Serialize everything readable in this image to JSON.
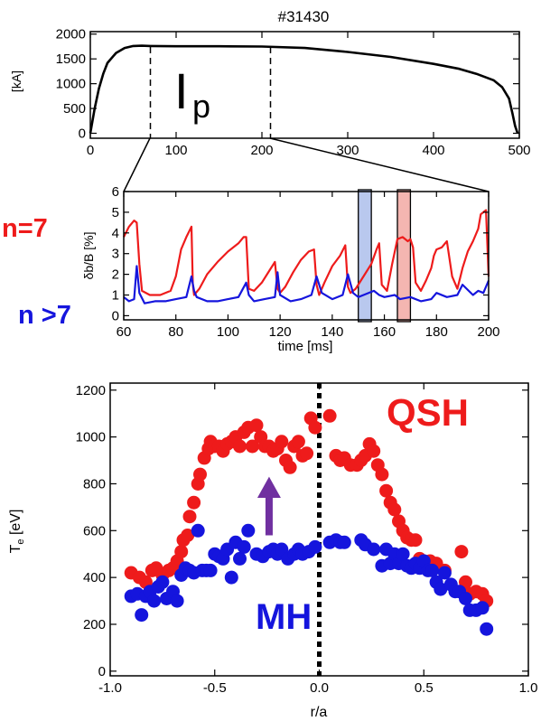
{
  "figure": {
    "shot_title": "#31430",
    "ip_label_main": "I",
    "ip_label_sub": "p",
    "n7_label": "n=7",
    "ngt7_label": "n  >7",
    "qsh_label": "QSH",
    "mh_label": "MH"
  },
  "colors": {
    "red": "#ee1b1b",
    "blue": "#1515dd",
    "arrow": "#7030a0",
    "box_blue": "#b9c8ee",
    "box_red": "#f4b6b1"
  },
  "chart_data": [
    {
      "type": "line",
      "title": "#31430",
      "xlabel": "",
      "ylabel": "[kA]",
      "xlim": [
        0,
        500
      ],
      "ylim": [
        -100,
        2050
      ],
      "xticks": [
        0,
        100,
        200,
        300,
        400,
        500
      ],
      "yticks": [
        0,
        500,
        1000,
        1500,
        2000
      ],
      "xtick_labels": [
        "0",
        "100",
        "200",
        "300",
        "400",
        "500"
      ],
      "ytick_labels": [
        "0",
        "500",
        "1000",
        "1500",
        "2000"
      ],
      "markers": [
        70,
        210
      ],
      "series": [
        {
          "color": "#000000",
          "x": [
            0,
            5,
            10,
            15,
            20,
            30,
            40,
            50,
            60,
            70,
            100,
            150,
            200,
            250,
            300,
            350,
            400,
            430,
            450,
            470,
            480,
            488,
            492,
            495,
            498
          ],
          "y": [
            0,
            500,
            900,
            1200,
            1420,
            1620,
            1720,
            1760,
            1765,
            1760,
            1755,
            1755,
            1750,
            1720,
            1640,
            1540,
            1400,
            1300,
            1200,
            1070,
            930,
            700,
            400,
            150,
            0
          ]
        }
      ]
    },
    {
      "type": "line",
      "xlabel": "time  [ms]",
      "ylabel": "δb/B  [%]",
      "xlim": [
        60,
        200
      ],
      "ylim": [
        -0.2,
        6
      ],
      "xticks": [
        60,
        80,
        100,
        120,
        140,
        160,
        180,
        200
      ],
      "yticks": [
        0,
        1,
        2,
        3,
        4,
        5,
        6
      ],
      "xtick_labels": [
        "60",
        "80",
        "100",
        "120",
        "140",
        "160",
        "180",
        "200"
      ],
      "ytick_labels": [
        "0",
        "1",
        "2",
        "3",
        "4",
        "5",
        "6"
      ],
      "highlight_windows": [
        {
          "from": 150,
          "to": 155,
          "color": "#b9c8ee"
        },
        {
          "from": 165,
          "to": 170,
          "color": "#f4b6b1"
        }
      ],
      "series": [
        {
          "name": "n=7",
          "color": "#ee1b1b",
          "x": [
            60,
            62,
            64,
            65,
            66,
            67,
            70,
            74,
            78,
            80,
            82,
            84,
            86,
            86.5,
            87,
            89,
            92,
            96,
            100,
            104,
            106,
            107,
            108,
            110,
            113,
            116,
            118,
            119,
            120,
            122,
            125,
            128,
            131,
            133,
            134,
            135,
            137,
            140,
            143,
            145,
            146,
            147,
            149,
            152,
            155,
            157,
            158,
            159,
            161,
            163,
            165,
            167,
            169,
            170,
            171,
            172,
            174,
            176,
            178,
            179,
            180,
            182,
            184,
            186,
            188,
            189,
            190,
            192,
            194,
            196,
            197,
            198,
            199,
            200
          ],
          "y": [
            3.8,
            4.3,
            4.6,
            4.5,
            2.5,
            1.2,
            1.0,
            1.0,
            1.2,
            1.9,
            3.2,
            3.8,
            4.3,
            1.5,
            1.0,
            1.3,
            2.0,
            2.6,
            3.1,
            3.5,
            3.8,
            3.8,
            1.3,
            1.2,
            1.6,
            2.2,
            2.6,
            1.3,
            1.1,
            1.4,
            2.1,
            2.7,
            3.1,
            3.2,
            1.5,
            1.0,
            1.6,
            2.4,
            2.9,
            3.4,
            1.4,
            1.1,
            1.3,
            1.9,
            2.5,
            3.2,
            3.5,
            1.5,
            1.2,
            2.5,
            3.7,
            3.8,
            3.6,
            3.7,
            3.3,
            1.6,
            1.2,
            1.7,
            2.3,
            2.9,
            3.2,
            3.3,
            3.6,
            1.9,
            1.3,
            1.8,
            2.3,
            3.1,
            3.6,
            4.2,
            4.9,
            5.0,
            5.1,
            1.9
          ]
        },
        {
          "name": "n >7",
          "color": "#1515dd",
          "x": [
            60,
            62,
            64,
            65,
            66,
            68,
            72,
            76,
            80,
            84,
            86,
            87,
            88,
            92,
            96,
            100,
            104,
            107,
            108,
            110,
            114,
            118,
            119,
            120,
            124,
            128,
            132,
            134,
            136,
            140,
            144,
            146,
            148,
            150,
            152,
            156,
            158,
            160,
            164,
            166,
            170,
            174,
            178,
            180,
            184,
            188,
            190,
            194,
            196,
            198,
            200
          ],
          "y": [
            0.9,
            0.7,
            0.8,
            2.4,
            1.1,
            0.6,
            0.7,
            0.7,
            0.8,
            0.9,
            1.9,
            1.2,
            0.9,
            0.7,
            0.7,
            0.8,
            0.9,
            1.6,
            1.0,
            0.7,
            0.8,
            0.9,
            2.1,
            1.0,
            0.7,
            0.8,
            1.0,
            1.9,
            1.1,
            0.8,
            1.0,
            2.0,
            1.1,
            0.9,
            1.0,
            1.2,
            1.0,
            0.9,
            1.0,
            0.8,
            0.9,
            0.7,
            0.8,
            1.1,
            0.9,
            1.0,
            1.5,
            1.0,
            1.2,
            1.1,
            1.7
          ]
        }
      ]
    },
    {
      "type": "scatter",
      "xlabel": "r/a",
      "ylabel": "T",
      "ylabel_sub": "e",
      "ylabel_unit": " [eV]",
      "xlim": [
        -1.0,
        1.0
      ],
      "ylim": [
        -20,
        1230
      ],
      "xticks": [
        -1.0,
        -0.5,
        0.0,
        0.5,
        1.0
      ],
      "yticks": [
        0,
        200,
        400,
        600,
        800,
        1000,
        1200
      ],
      "xtick_labels": [
        "-1.0",
        "-0.5",
        "0.0",
        "0.5",
        "1.0"
      ],
      "ytick_labels": [
        "0",
        "200",
        "400",
        "600",
        "800",
        "1000",
        "1200"
      ],
      "series": [
        {
          "name": "QSH",
          "color": "#ee1b1b",
          "x": [
            -0.9,
            -0.86,
            -0.83,
            -0.8,
            -0.78,
            -0.75,
            -0.72,
            -0.7,
            -0.68,
            -0.66,
            -0.65,
            -0.63,
            -0.62,
            -0.6,
            -0.58,
            -0.57,
            -0.55,
            -0.53,
            -0.52,
            -0.5,
            -0.48,
            -0.46,
            -0.44,
            -0.42,
            -0.4,
            -0.38,
            -0.36,
            -0.34,
            -0.32,
            -0.3,
            -0.28,
            -0.26,
            -0.24,
            -0.22,
            -0.2,
            -0.18,
            -0.16,
            -0.14,
            -0.12,
            -0.1,
            -0.08,
            -0.06,
            -0.04,
            -0.02,
            0.05,
            0.08,
            0.1,
            0.12,
            0.15,
            0.18,
            0.2,
            0.22,
            0.24,
            0.26,
            0.28,
            0.3,
            0.32,
            0.34,
            0.36,
            0.38,
            0.4,
            0.42,
            0.44,
            0.46,
            0.48,
            0.5,
            0.53,
            0.56,
            0.6,
            0.68,
            0.7,
            0.72,
            0.75,
            0.78,
            0.8
          ],
          "y": [
            420,
            400,
            380,
            430,
            440,
            410,
            430,
            440,
            470,
            510,
            560,
            580,
            660,
            720,
            800,
            840,
            910,
            950,
            980,
            960,
            960,
            940,
            970,
            980,
            1000,
            960,
            1020,
            1040,
            960,
            1050,
            1000,
            960,
            960,
            940,
            950,
            980,
            900,
            870,
            960,
            980,
            920,
            930,
            1080,
            1040,
            1090,
            920,
            900,
            910,
            880,
            880,
            900,
            920,
            970,
            940,
            880,
            840,
            770,
            720,
            690,
            640,
            600,
            570,
            560,
            560,
            480,
            470,
            470,
            460,
            430,
            510,
            380,
            330,
            340,
            330,
            300
          ]
        },
        {
          "name": "MH",
          "color": "#1515dd",
          "x": [
            -0.9,
            -0.87,
            -0.85,
            -0.83,
            -0.81,
            -0.79,
            -0.77,
            -0.75,
            -0.73,
            -0.7,
            -0.68,
            -0.66,
            -0.64,
            -0.62,
            -0.6,
            -0.58,
            -0.56,
            -0.54,
            -0.52,
            -0.5,
            -0.48,
            -0.46,
            -0.44,
            -0.42,
            -0.4,
            -0.38,
            -0.36,
            -0.34,
            -0.3,
            -0.27,
            -0.24,
            -0.22,
            -0.2,
            -0.18,
            -0.15,
            -0.12,
            -0.1,
            -0.08,
            -0.05,
            -0.02,
            0.05,
            0.08,
            0.1,
            0.12,
            0.2,
            0.22,
            0.26,
            0.3,
            0.32,
            0.34,
            0.36,
            0.38,
            0.4,
            0.42,
            0.44,
            0.46,
            0.48,
            0.5,
            0.52,
            0.54,
            0.56,
            0.58,
            0.6,
            0.63,
            0.65,
            0.67,
            0.7,
            0.72,
            0.75,
            0.78,
            0.8
          ],
          "y": [
            320,
            330,
            240,
            320,
            340,
            300,
            360,
            380,
            310,
            340,
            300,
            410,
            440,
            430,
            420,
            600,
            430,
            430,
            430,
            500,
            490,
            480,
            520,
            400,
            550,
            480,
            530,
            600,
            500,
            490,
            510,
            520,
            500,
            520,
            480,
            500,
            520,
            500,
            510,
            530,
            550,
            560,
            550,
            550,
            560,
            540,
            520,
            450,
            520,
            460,
            500,
            460,
            500,
            450,
            440,
            460,
            440,
            470,
            430,
            430,
            380,
            350,
            420,
            370,
            340,
            340,
            310,
            260,
            260,
            270,
            180
          ]
        }
      ]
    }
  ]
}
